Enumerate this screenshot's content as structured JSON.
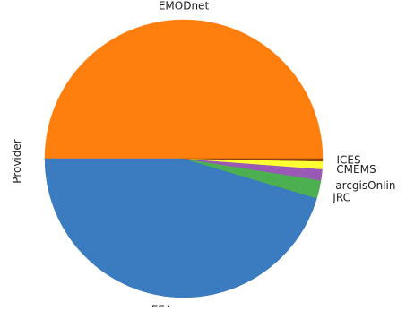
{
  "chart_data": {
    "type": "pie",
    "ylabel": "Provider",
    "labels": [
      "EMODnet",
      "EEA",
      "JRC",
      "arcgisOnlin",
      "CMEMS",
      "ICES"
    ],
    "values": [
      50.0,
      45.4,
      2.1,
      1.3,
      0.9,
      0.3
    ],
    "colors": [
      "#ff7f0e",
      "#3b7bbf",
      "#4caf50",
      "#9b59b6",
      "#ffff33",
      "#8b4513"
    ]
  }
}
